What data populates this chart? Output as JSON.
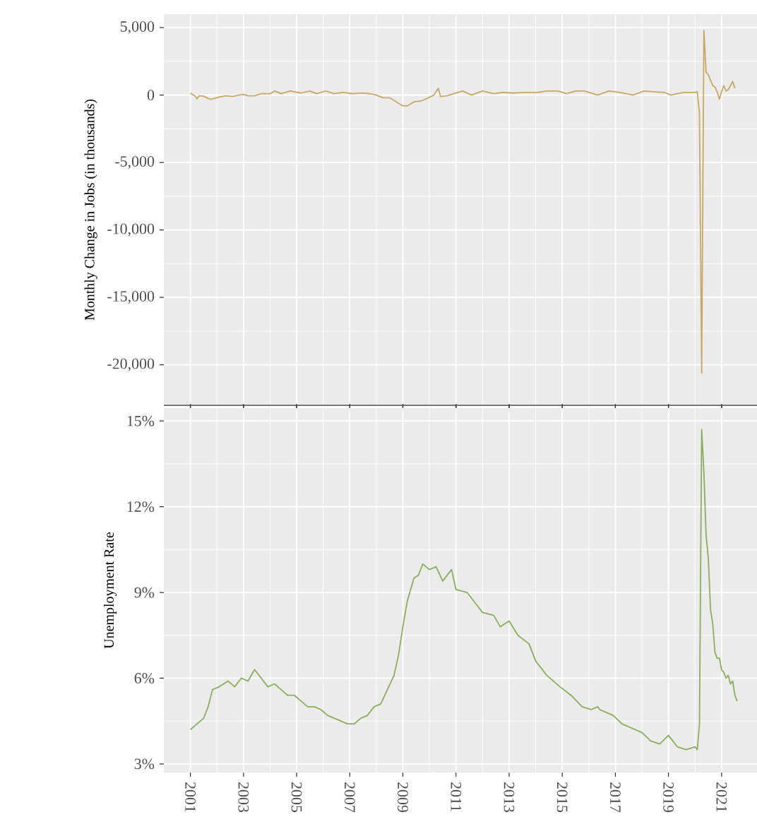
{
  "chart_data": [
    {
      "type": "line",
      "ylabel": "Monthly Change in Jobs (in thousands)",
      "color": "#c9a867",
      "grid": true,
      "tick_labels": "y",
      "xlim": [
        "2000-01",
        "2022-05"
      ],
      "xticks": [
        "2001",
        "2003",
        "2005",
        "2007",
        "2009",
        "2011",
        "2013",
        "2015",
        "2017",
        "2019",
        "2021"
      ],
      "ylim": [
        -23000,
        6000
      ],
      "yticks": [
        {
          "value": 5000,
          "label": "5,000"
        },
        0,
        {
          "value": -5000,
          "label": "-5,000"
        },
        {
          "value": -10000,
          "label": "-10,000"
        },
        {
          "value": -15000,
          "label": "-15,000"
        },
        {
          "value": -20000,
          "label": "-20,000"
        }
      ],
      "x": [
        "2001-01",
        "2001-02",
        "2001-03",
        "2001-04",
        "2001-05",
        "2001-07",
        "2001-09",
        "2001-10",
        "2001-12",
        "2002-02",
        "2002-05",
        "2002-08",
        "2002-11",
        "2003-01",
        "2003-03",
        "2003-06",
        "2003-09",
        "2004-01",
        "2004-03",
        "2004-06",
        "2004-10",
        "2005-03",
        "2005-07",
        "2005-10",
        "2006-02",
        "2006-06",
        "2006-10",
        "2007-02",
        "2007-06",
        "2007-10",
        "2008-01",
        "2008-04",
        "2008-07",
        "2008-10",
        "2008-12",
        "2009-01",
        "2009-03",
        "2009-06",
        "2009-09",
        "2009-12",
        "2010-03",
        "2010-05",
        "2010-06",
        "2010-09",
        "2010-12",
        "2011-04",
        "2011-08",
        "2012-01",
        "2012-06",
        "2012-10",
        "2013-03",
        "2013-08",
        "2014-02",
        "2014-06",
        "2014-11",
        "2015-03",
        "2015-07",
        "2015-11",
        "2016-05",
        "2016-10",
        "2017-03",
        "2017-09",
        "2018-02",
        "2018-06",
        "2018-11",
        "2019-02",
        "2019-05",
        "2019-08",
        "2019-12",
        "2020-01",
        "2020-02",
        "2020-03",
        "2020-04",
        "2020-05",
        "2020-06",
        "2020-07",
        "2020-08",
        "2020-09",
        "2020-10",
        "2020-11",
        "2020-12",
        "2021-01",
        "2021-02",
        "2021-03",
        "2021-04",
        "2021-05",
        "2021-06",
        "2021-07"
      ],
      "values": [
        150,
        30,
        -50,
        -280,
        -50,
        -80,
        -250,
        -320,
        -250,
        -150,
        -50,
        -100,
        0,
        50,
        -50,
        -50,
        100,
        100,
        300,
        100,
        300,
        150,
        300,
        100,
        300,
        100,
        200,
        100,
        150,
        100,
        0,
        -200,
        -200,
        -500,
        -700,
        -800,
        -800,
        -500,
        -450,
        -250,
        0,
        500,
        -100,
        -50,
        100,
        300,
        0,
        300,
        100,
        200,
        150,
        200,
        200,
        300,
        300,
        100,
        300,
        300,
        0,
        300,
        200,
        0,
        300,
        250,
        200,
        0,
        100,
        200,
        200,
        200,
        250,
        -1400,
        -20600,
        4800,
        1700,
        1500,
        1100,
        700,
        600,
        250,
        -300,
        250,
        700,
        300,
        400,
        700,
        1000,
        500
      ]
    },
    {
      "type": "line",
      "ylabel": "Unemployment Rate",
      "color": "#8aae5c",
      "grid": true,
      "xlim": [
        "2000-01",
        "2022-05"
      ],
      "xticks": [
        "2001",
        "2003",
        "2005",
        "2007",
        "2009",
        "2011",
        "2013",
        "2015",
        "2017",
        "2019",
        "2021"
      ],
      "ylim": [
        2.7,
        15.45
      ],
      "yticks": [
        {
          "value": 3,
          "label": "3%"
        },
        {
          "value": 6,
          "label": "6%"
        },
        {
          "value": 9,
          "label": "9%"
        },
        {
          "value": 12,
          "label": "12%"
        },
        {
          "value": 15,
          "label": "15%"
        }
      ],
      "x": [
        "2001-01",
        "2001-04",
        "2001-07",
        "2001-09",
        "2001-11",
        "2002-02",
        "2002-06",
        "2002-09",
        "2002-12",
        "2003-03",
        "2003-06",
        "2003-09",
        "2003-12",
        "2004-03",
        "2004-06",
        "2004-09",
        "2004-12",
        "2005-03",
        "2005-06",
        "2005-09",
        "2005-12",
        "2006-03",
        "2006-06",
        "2006-09",
        "2006-12",
        "2007-03",
        "2007-06",
        "2007-09",
        "2007-12",
        "2008-03",
        "2008-06",
        "2008-09",
        "2008-11",
        "2009-01",
        "2009-03",
        "2009-06",
        "2009-08",
        "2009-10",
        "2010-01",
        "2010-04",
        "2010-07",
        "2010-11",
        "2011-01",
        "2011-06",
        "2011-11",
        "2012-01",
        "2012-06",
        "2012-09",
        "2013-01",
        "2013-05",
        "2013-10",
        "2014-01",
        "2014-06",
        "2014-12",
        "2015-05",
        "2015-10",
        "2016-02",
        "2016-05",
        "2016-06",
        "2016-12",
        "2017-04",
        "2017-10",
        "2018-01",
        "2018-05",
        "2018-09",
        "2019-01",
        "2019-05",
        "2019-09",
        "2020-01",
        "2020-02",
        "2020-03",
        "2020-04",
        "2020-05",
        "2020-06",
        "2020-07",
        "2020-08",
        "2020-09",
        "2020-10",
        "2020-11",
        "2020-12",
        "2021-01",
        "2021-02",
        "2021-03",
        "2021-04",
        "2021-05",
        "2021-06",
        "2021-07",
        "2021-08"
      ],
      "values": [
        4.2,
        4.4,
        4.6,
        5.0,
        5.6,
        5.7,
        5.9,
        5.7,
        6.0,
        5.9,
        6.3,
        6.0,
        5.7,
        5.8,
        5.6,
        5.4,
        5.4,
        5.2,
        5.0,
        5.0,
        4.9,
        4.7,
        4.6,
        4.5,
        4.4,
        4.4,
        4.6,
        4.7,
        5.0,
        5.1,
        5.6,
        6.1,
        6.8,
        7.8,
        8.7,
        9.5,
        9.6,
        10.0,
        9.8,
        9.9,
        9.4,
        9.8,
        9.1,
        9.0,
        8.5,
        8.3,
        8.2,
        7.8,
        8.0,
        7.5,
        7.2,
        6.6,
        6.1,
        5.7,
        5.4,
        5.0,
        4.9,
        5.0,
        4.9,
        4.7,
        4.4,
        4.2,
        4.1,
        3.8,
        3.7,
        4.0,
        3.6,
        3.5,
        3.6,
        3.5,
        4.4,
        14.7,
        13.2,
        11.0,
        10.2,
        8.4,
        7.9,
        6.9,
        6.7,
        6.7,
        6.3,
        6.2,
        6.0,
        6.1,
        5.8,
        5.9,
        5.4,
        5.2
      ]
    }
  ]
}
